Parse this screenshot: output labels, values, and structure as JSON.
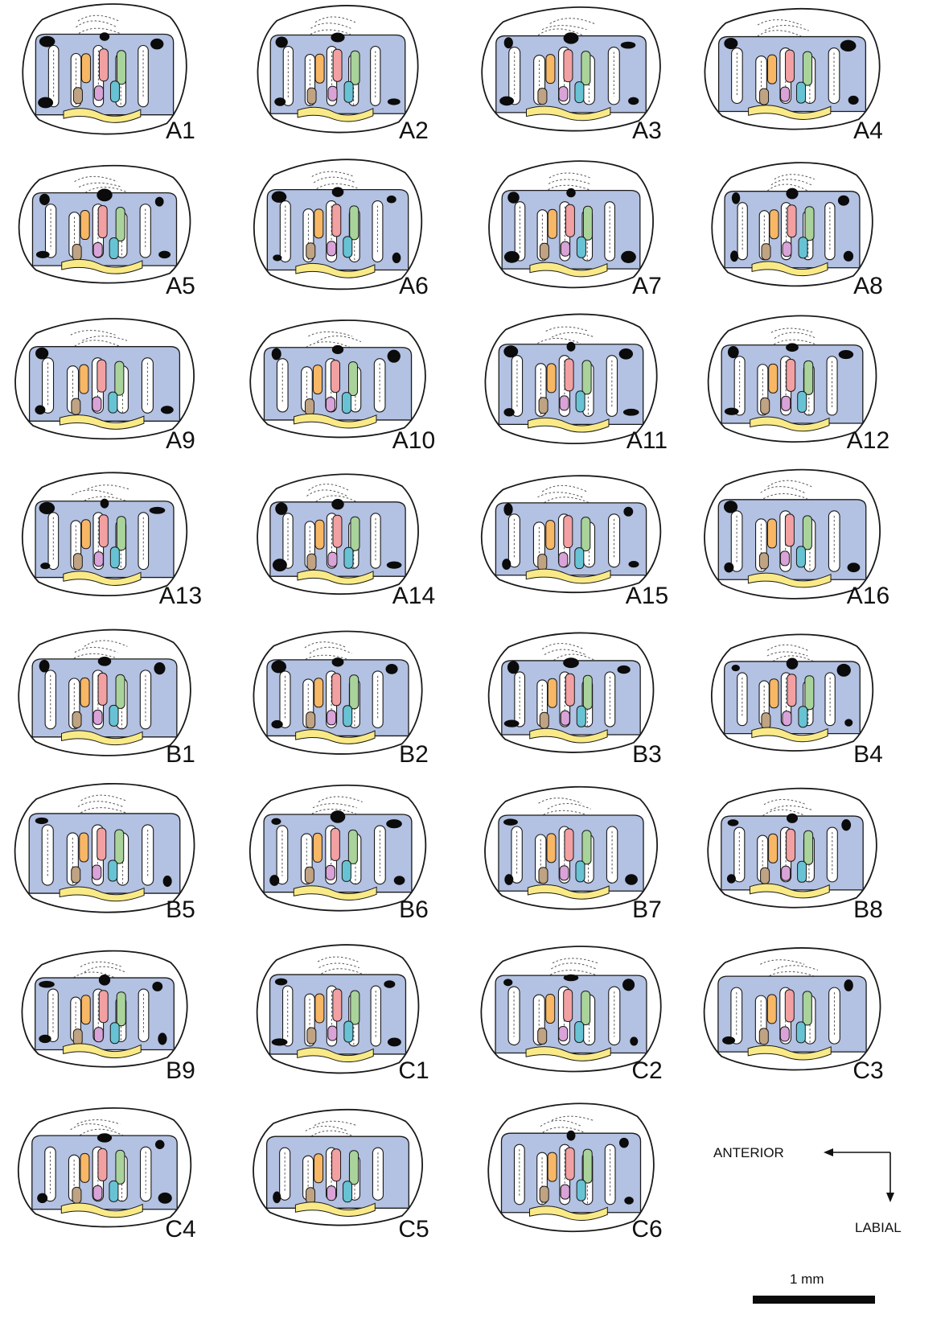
{
  "panels": [
    {
      "label": "A1"
    },
    {
      "label": "A2"
    },
    {
      "label": "A3"
    },
    {
      "label": "A4"
    },
    {
      "label": "A5"
    },
    {
      "label": "A6"
    },
    {
      "label": "A7"
    },
    {
      "label": "A8"
    },
    {
      "label": "A9"
    },
    {
      "label": "A10"
    },
    {
      "label": "A11"
    },
    {
      "label": "A12"
    },
    {
      "label": "A13"
    },
    {
      "label": "A14"
    },
    {
      "label": "A15"
    },
    {
      "label": "A16"
    },
    {
      "label": "B1"
    },
    {
      "label": "B2"
    },
    {
      "label": "B3"
    },
    {
      "label": "B4"
    },
    {
      "label": "B5"
    },
    {
      "label": "B6"
    },
    {
      "label": "B7"
    },
    {
      "label": "B8"
    },
    {
      "label": "B9"
    },
    {
      "label": "C1"
    },
    {
      "label": "C2"
    },
    {
      "label": "C3"
    },
    {
      "label": "C4"
    },
    {
      "label": "C5"
    },
    {
      "label": "C6"
    }
  ],
  "orientation": {
    "anterior_label": "ANTERIOR",
    "labial_label": "LABIAL"
  },
  "scale_bar": {
    "label": "1 mm"
  },
  "colors": {
    "enamel": "#b3c1e2",
    "orange": "#f7b765",
    "pink": "#f2a0a2",
    "green": "#a9d39a",
    "teal": "#67c3d3",
    "violet": "#d9a3d8",
    "tan": "#bfa382",
    "yellow": "#f9ea87",
    "pit": "#0b0b0b",
    "outline": "#1a1a1a"
  }
}
